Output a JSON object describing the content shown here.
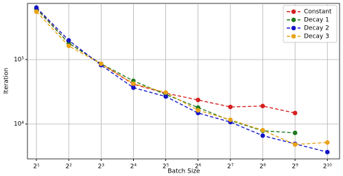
{
  "chart_data": {
    "type": "line",
    "x": [
      2,
      4,
      8,
      16,
      32,
      64,
      128,
      256,
      512,
      1024
    ],
    "xlabel": "Batch Size",
    "ylabel": "Iteration",
    "xscale": "log",
    "yscale": "log",
    "xlim": [
      1.65,
      1330
    ],
    "ylim": [
      2870,
      745000
    ],
    "xticks": [
      {
        "value": 2,
        "label": "2¹"
      },
      {
        "value": 4,
        "label": "2²"
      },
      {
        "value": 8,
        "label": "2³"
      },
      {
        "value": 16,
        "label": "2⁴"
      },
      {
        "value": 32,
        "label": "2⁵"
      },
      {
        "value": 64,
        "label": "2⁶"
      },
      {
        "value": 128,
        "label": "2⁷"
      },
      {
        "value": 256,
        "label": "2⁸"
      },
      {
        "value": 512,
        "label": "2⁹"
      },
      {
        "value": 1024,
        "label": "2¹⁰"
      }
    ],
    "yticks": [
      {
        "value": 10000,
        "label": "10⁴"
      },
      {
        "value": 100000,
        "label": "10⁵"
      }
    ],
    "grid": true,
    "legend": "upper right",
    "series": [
      {
        "name": "Constant",
        "color": "#d62020",
        "values": [
          628000,
          180000,
          86000,
          41400,
          30100,
          23600,
          18400,
          19000,
          14800,
          null
        ]
      },
      {
        "name": "Decay 1",
        "color": "#1f7a1f",
        "values": [
          613000,
          180000,
          86000,
          46800,
          28700,
          18000,
          11300,
          7830,
          7280,
          null
        ]
      },
      {
        "name": "Decay 2",
        "color": "#1515c8",
        "values": [
          643000,
          199000,
          82000,
          36600,
          26700,
          14800,
          10700,
          6590,
          4910,
          3660
        ]
      },
      {
        "name": "Decay 3",
        "color": "#e8a317",
        "values": [
          555000,
          163000,
          86000,
          42400,
          30800,
          16300,
          11600,
          8000,
          4800,
          5160
        ]
      }
    ]
  }
}
